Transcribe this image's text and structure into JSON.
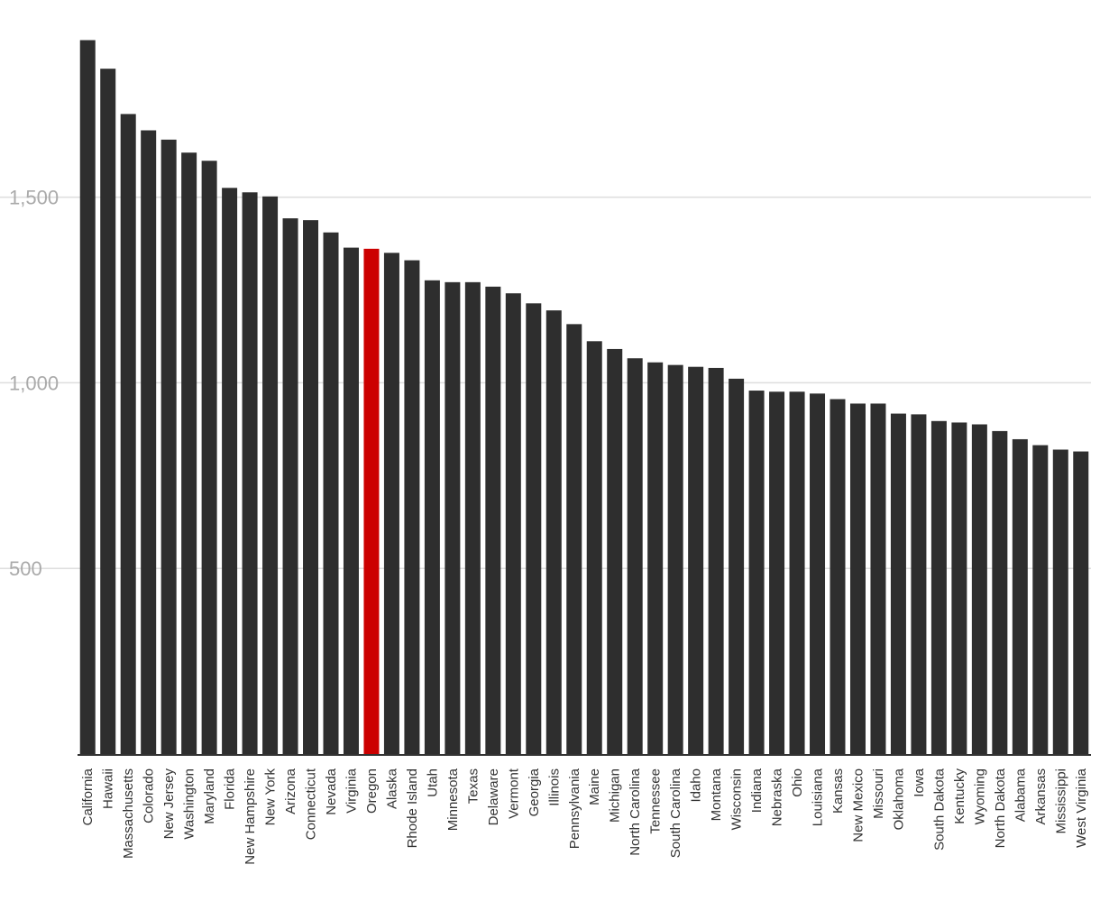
{
  "chart_data": {
    "type": "bar",
    "title": "",
    "xlabel": "",
    "ylabel": "",
    "ylim": [
      0,
      1930
    ],
    "yticks": [
      500,
      1000,
      1500
    ],
    "ytick_labels": [
      "500",
      "1,000",
      "1,500"
    ],
    "grid": true,
    "legend": "none",
    "highlight_category": "Oregon",
    "colors": {
      "bar": "#2e2e2e",
      "highlight": "#cc0000",
      "grid": "#dddddd",
      "axis": "#333333",
      "y_tick_text": "#aaaaaa",
      "x_tick_text": "#333333"
    },
    "categories": [
      "California",
      "Hawaii",
      "Massachusetts",
      "Colorado",
      "New Jersey",
      "Washington",
      "Maryland",
      "Florida",
      "New Hampshire",
      "New York",
      "Arizona",
      "Connecticut",
      "Nevada",
      "Virginia",
      "Oregon",
      "Alaska",
      "Rhode Island",
      "Utah",
      "Minnesota",
      "Texas",
      "Delaware",
      "Vermont",
      "Georgia",
      "Illinois",
      "Pennsylvania",
      "Maine",
      "Michigan",
      "North Carolina",
      "Tennessee",
      "South Carolina",
      "Idaho",
      "Montana",
      "Wisconsin",
      "Indiana",
      "Nebraska",
      "Ohio",
      "Louisiana",
      "Kansas",
      "New Mexico",
      "Missouri",
      "Oklahoma",
      "Iowa",
      "South Dakota",
      "Kentucky",
      "Wyoming",
      "North Dakota",
      "Alabama",
      "Arkansas",
      "Mississippi",
      "West Virginia"
    ],
    "values": [
      1923,
      1846,
      1724,
      1680,
      1655,
      1620,
      1598,
      1525,
      1513,
      1502,
      1443,
      1438,
      1405,
      1364,
      1361,
      1350,
      1330,
      1276,
      1271,
      1271,
      1259,
      1241,
      1214,
      1195,
      1158,
      1112,
      1091,
      1066,
      1055,
      1048,
      1043,
      1040,
      1011,
      979,
      976,
      976,
      971,
      956,
      944,
      944,
      917,
      915,
      897,
      893,
      888,
      870,
      848,
      832,
      820,
      815
    ]
  }
}
